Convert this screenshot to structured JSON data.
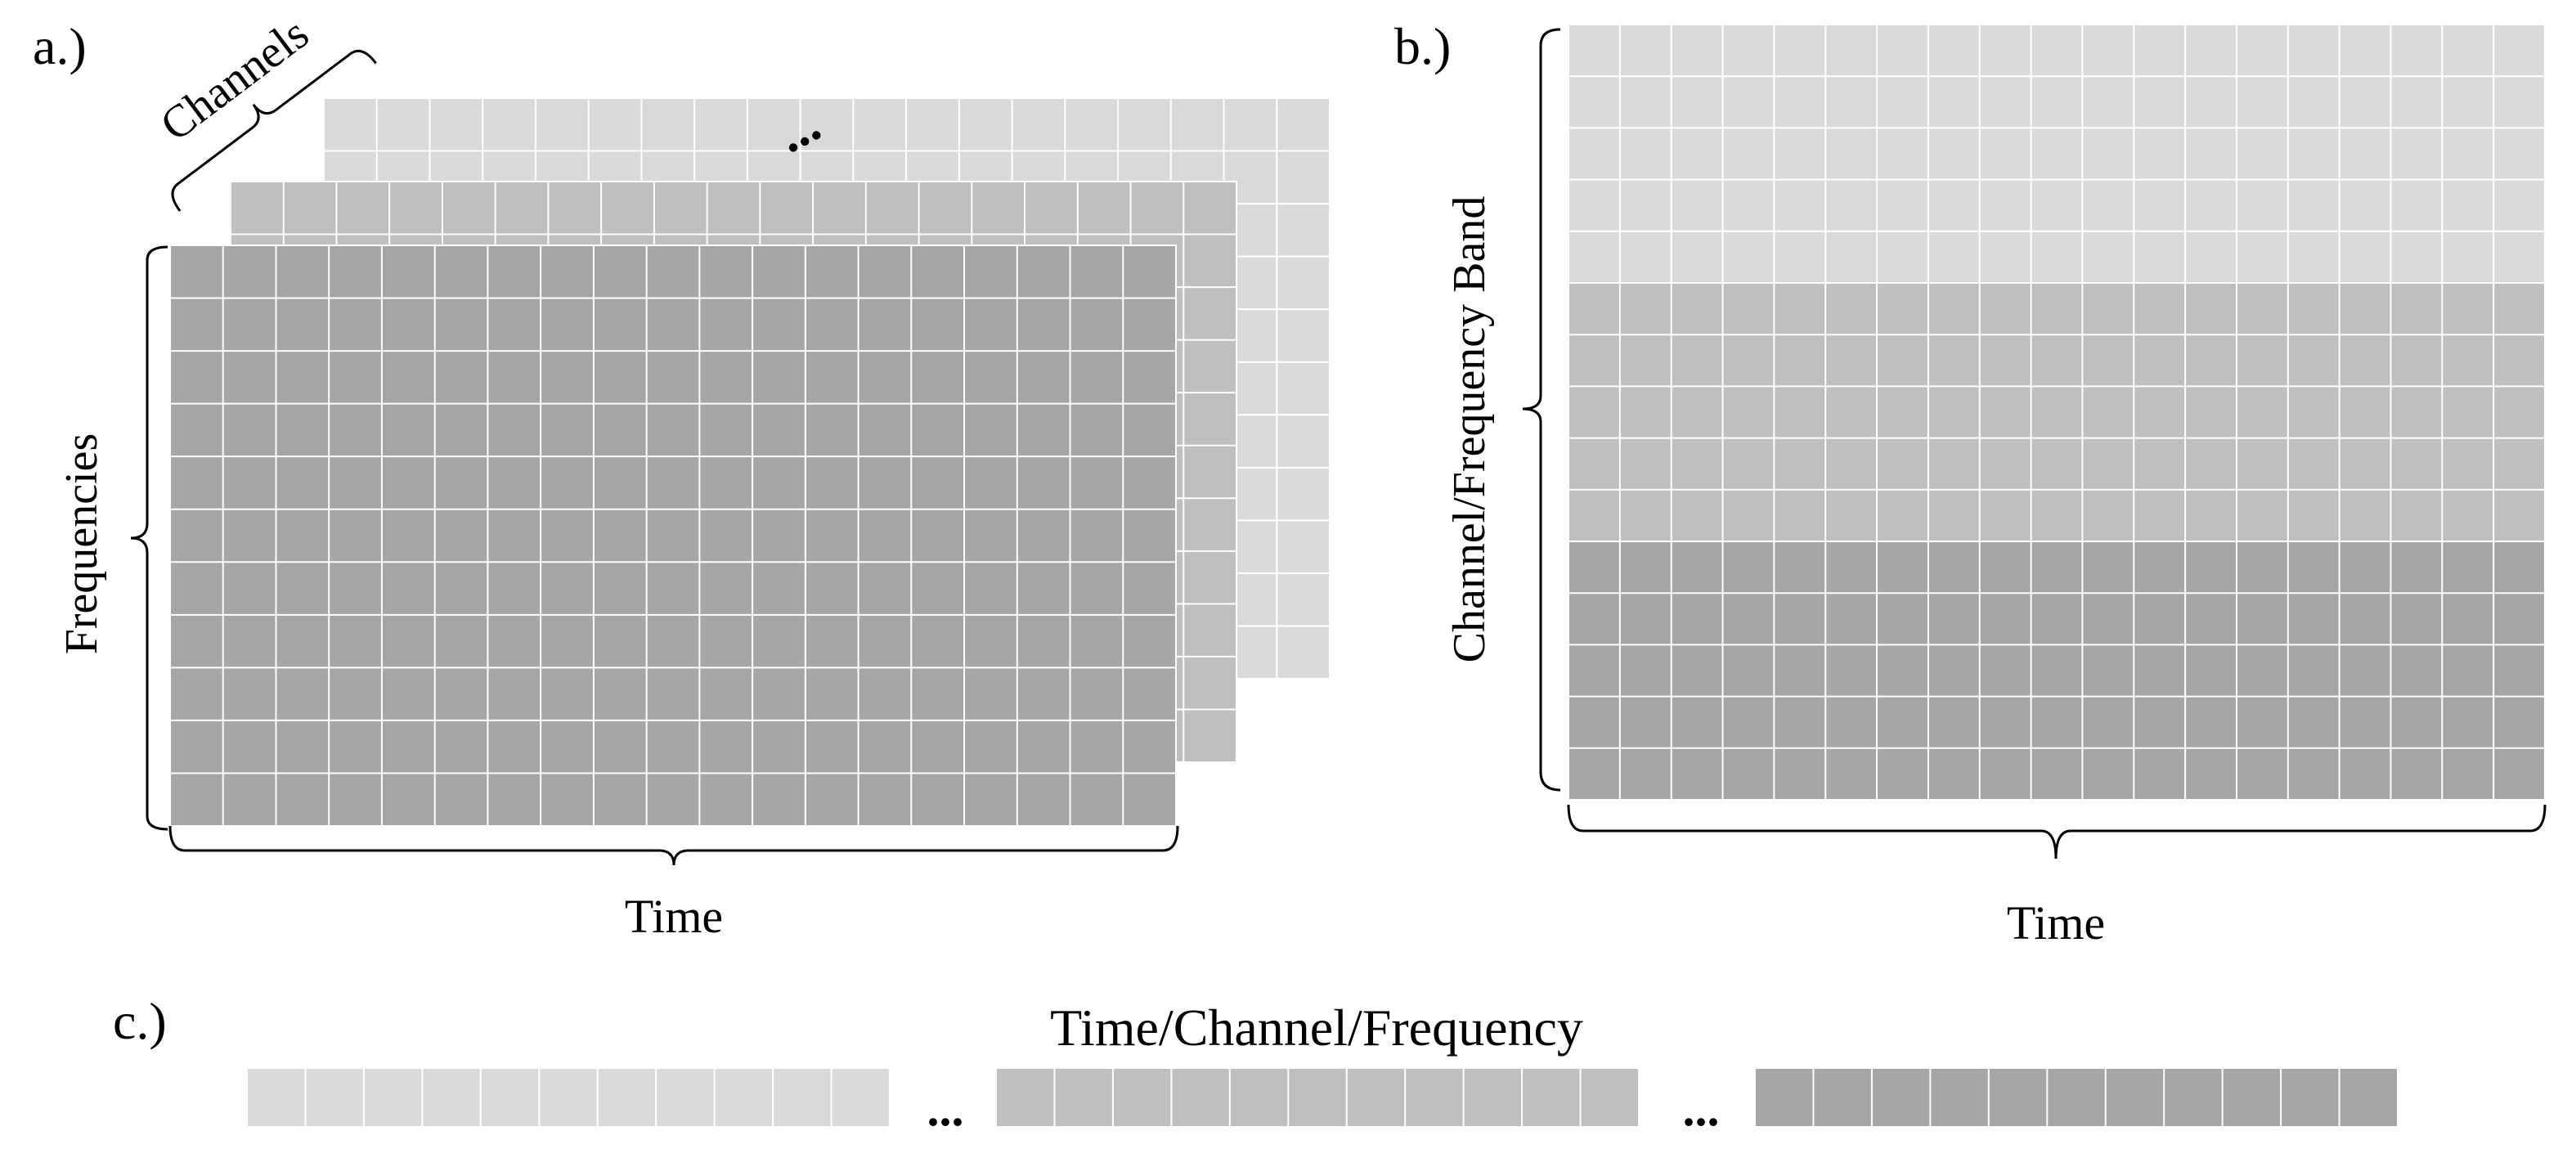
{
  "panel_a": {
    "label": "a.)",
    "axis_time": "Time",
    "axis_frequencies": "Frequencies",
    "axis_channels": "Channels",
    "ellipsis": "..."
  },
  "panel_b": {
    "label": "b.)",
    "axis_channel_frequency_band": "Channel/Frequency Band",
    "axis_time": "Time"
  },
  "panel_c": {
    "label": "c.)",
    "title": "Time/Channel/Frequency",
    "ellipsis_1": "...",
    "ellipsis_2": "..."
  },
  "colors": {
    "light": "#d9d9d9",
    "medium": "#bfbfbf",
    "dark": "#a6a6a6",
    "grid_line": "#ffffff",
    "bracket": "#000000"
  }
}
